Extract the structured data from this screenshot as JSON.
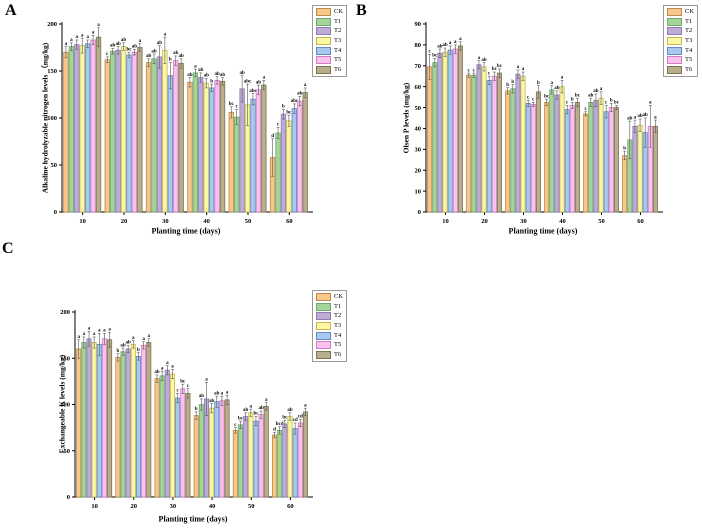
{
  "legend_entries": [
    "CK",
    "T1",
    "T2",
    "T3",
    "T4",
    "T5",
    "T6"
  ],
  "series_styles": [
    {
      "name": "CK",
      "fill": "#F6C78C",
      "stroke": "#BE8A45"
    },
    {
      "name": "T1",
      "fill": "#A5D49B",
      "stroke": "#6FA86F"
    },
    {
      "name": "T2",
      "fill": "#BEACD5",
      "stroke": "#8E7BB5"
    },
    {
      "name": "T3",
      "fill": "#FBF7A6",
      "stroke": "#C5B94E"
    },
    {
      "name": "T4",
      "fill": "#A7C9EE",
      "stroke": "#6189C5"
    },
    {
      "name": "T5",
      "fill": "#F7C3EC",
      "stroke": "#D57BC5"
    },
    {
      "name": "T6",
      "fill": "#B9AE8B",
      "stroke": "#7E7450"
    }
  ],
  "error_bar_color": "#555555",
  "axis_color": "#000000",
  "chart_data": [
    {
      "type": "bar",
      "panel_label": "A",
      "ylabel": "Alkaline hydrolyzable nitrogen levels （mg/kg)",
      "xlabel": "Planting time (days)",
      "ylim": [
        0,
        200
      ],
      "yticks": [
        0,
        50,
        100,
        150,
        200
      ],
      "categories": [
        "10",
        "20",
        "30",
        "40",
        "50",
        "60"
      ],
      "grid": false,
      "legend_position": "outside-top-right",
      "series": [
        {
          "name": "CK",
          "values": [
            170,
            162,
            159,
            138,
            106,
            58
          ],
          "errors": [
            6,
            3,
            4,
            5,
            6,
            20
          ],
          "sig_labels": [
            "a",
            "c",
            "ab",
            "ab",
            "bc",
            "d"
          ]
        },
        {
          "name": "T1",
          "values": [
            176,
            171,
            163,
            148,
            101,
            84
          ],
          "errors": [
            4,
            3,
            5,
            4,
            8,
            6
          ],
          "sig_labels": [
            "a",
            "ab",
            "ab",
            "a",
            "c",
            "c"
          ]
        },
        {
          "name": "T2",
          "values": [
            178,
            172,
            165,
            143,
            131,
            104
          ],
          "errors": [
            5,
            4,
            12,
            5,
            14,
            5
          ],
          "sig_labels": [
            "a",
            "ab",
            "ab",
            "ab",
            "ab",
            "b"
          ]
        },
        {
          "name": "T3",
          "values": [
            177,
            176,
            172,
            137,
            114,
            97
          ],
          "errors": [
            8,
            4,
            14,
            5,
            22,
            6
          ],
          "sig_labels": [
            "a",
            "ab",
            "a",
            "ab",
            "abc",
            "bc"
          ]
        },
        {
          "name": "T4",
          "values": [
            179,
            167,
            145,
            132,
            120,
            110
          ],
          "errors": [
            4,
            3,
            14,
            4,
            6,
            5
          ],
          "sig_labels": [
            "a",
            "bc",
            "b",
            "b",
            "abc",
            "abc"
          ]
        },
        {
          "name": "T5",
          "values": [
            183,
            170,
            161,
            140,
            130,
            118
          ],
          "errors": [
            5,
            3,
            5,
            4,
            5,
            5
          ],
          "sig_labels": [
            "a",
            "ab",
            "ab",
            "ab",
            "ab",
            "ab"
          ]
        },
        {
          "name": "T6",
          "values": [
            186,
            175,
            158,
            139,
            135,
            127
          ],
          "errors": [
            10,
            4,
            5,
            4,
            5,
            5
          ],
          "sig_labels": [
            "a",
            "a",
            "ab",
            "ab",
            "a",
            "a"
          ]
        }
      ]
    },
    {
      "type": "bar",
      "panel_label": "B",
      "ylabel": "Olsen P levels (mg/kg)",
      "xlabel": "Planting time (days)",
      "ylim": [
        0,
        90
      ],
      "yticks": [
        0,
        10,
        20,
        30,
        40,
        50,
        60,
        70,
        80,
        90
      ],
      "categories": [
        "10",
        "20",
        "30",
        "40",
        "50",
        "60"
      ],
      "grid": false,
      "legend_position": "outside-top-right",
      "series": [
        {
          "name": "CK",
          "values": [
            69.5,
            65.5,
            58,
            52.5,
            47,
            27
          ],
          "errors": [
            6,
            1,
            1.5,
            1.5,
            1,
            2
          ],
          "sig_labels": [
            "c",
            "c",
            "b",
            "bc",
            "c",
            "b"
          ]
        },
        {
          "name": "T1",
          "values": [
            71.5,
            65.5,
            59,
            58.5,
            52.5,
            34.5
          ],
          "errors": [
            2,
            1,
            2,
            2,
            2,
            9
          ],
          "sig_labels": [
            "bc",
            "c",
            "b",
            "a",
            "ab",
            "ab"
          ]
        },
        {
          "name": "T2",
          "values": [
            76,
            70.5,
            66,
            56,
            53.5,
            41
          ],
          "errors": [
            2,
            2,
            2,
            2,
            3,
            3
          ],
          "sig_labels": [
            "ab",
            "a",
            "a",
            "ab",
            "ab",
            "a"
          ]
        },
        {
          "name": "T3",
          "values": [
            76.5,
            69.5,
            65,
            60,
            54.5,
            41.5
          ],
          "errors": [
            2,
            2,
            2,
            3,
            3,
            3
          ],
          "sig_labels": [
            "ab",
            "ab",
            "a",
            "a",
            "a",
            "ab"
          ]
        },
        {
          "name": "T4",
          "values": [
            77.5,
            63,
            52,
            49,
            48,
            38
          ],
          "errors": [
            2,
            2,
            1.5,
            2,
            3,
            7
          ],
          "sig_labels": [
            "a",
            "c",
            "c",
            "c",
            "c",
            "ab"
          ]
        },
        {
          "name": "T5",
          "values": [
            78,
            65,
            51.5,
            51,
            50,
            41
          ],
          "errors": [
            2,
            2,
            1,
            1.5,
            2,
            10
          ],
          "sig_labels": [
            "a",
            "bc",
            "c",
            "b",
            "b",
            "a"
          ]
        },
        {
          "name": "T6",
          "values": [
            79.5,
            66.5,
            57.5,
            52.5,
            50,
            41
          ],
          "errors": [
            2,
            2,
            3,
            2,
            1,
            3
          ],
          "sig_labels": [
            "a",
            "bc",
            "b",
            "bc",
            "bc",
            "a"
          ]
        }
      ]
    },
    {
      "type": "bar",
      "panel_label": "C",
      "ylabel": "Exchangeable K levels (mg/kg)",
      "xlabel": "Planting time (days)",
      "ylim": [
        0,
        200
      ],
      "yticks": [
        0,
        50,
        100,
        150,
        200
      ],
      "categories": [
        "10",
        "20",
        "30",
        "40",
        "50",
        "60"
      ],
      "grid": false,
      "legend_position": "outside-top-right",
      "series": [
        {
          "name": "CK",
          "values": [
            160,
            151,
            128,
            88,
            72,
            67
          ],
          "errors": [
            10,
            4,
            4,
            4,
            3,
            3
          ],
          "sig_labels": [
            "a",
            "b",
            "ab",
            "b",
            "c",
            "d"
          ]
        },
        {
          "name": "T1",
          "values": [
            167,
            157,
            131,
            100,
            78,
            72
          ],
          "errors": [
            6,
            4,
            5,
            6,
            4,
            4
          ],
          "sig_labels": [
            "a",
            "ab",
            "a",
            "ab",
            "bc",
            "bcd"
          ]
        },
        {
          "name": "T2",
          "values": [
            171,
            160,
            137,
            106,
            87,
            79
          ],
          "errors": [
            8,
            4,
            5,
            18,
            4,
            4
          ],
          "sig_labels": [
            "a",
            "ab",
            "a",
            "a",
            "ab",
            "bc"
          ]
        },
        {
          "name": "T3",
          "values": [
            167,
            165,
            133,
            96,
            91,
            87
          ],
          "errors": [
            6,
            4,
            5,
            5,
            4,
            4
          ],
          "sig_labels": [
            "a",
            "a",
            "a",
            "ab",
            "a",
            "ab"
          ]
        },
        {
          "name": "T4",
          "values": [
            165,
            152,
            107,
            103,
            82,
            74
          ],
          "errors": [
            12,
            4,
            5,
            6,
            5,
            6
          ],
          "sig_labels": [
            "a",
            "b",
            "c",
            "ab",
            "bc",
            "cd"
          ]
        },
        {
          "name": "T5",
          "values": [
            171,
            164,
            117,
            104,
            89,
            80
          ],
          "errors": [
            6,
            4,
            5,
            5,
            4,
            4
          ],
          "sig_labels": [
            "a",
            "a",
            "bc",
            "a",
            "ab",
            "cd"
          ]
        },
        {
          "name": "T6",
          "values": [
            170,
            167,
            112,
            105,
            98,
            92
          ],
          "errors": [
            8,
            4,
            5,
            5,
            4,
            4
          ],
          "sig_labels": [
            "a",
            "a",
            "c",
            "a",
            "a",
            "a"
          ]
        }
      ]
    }
  ]
}
